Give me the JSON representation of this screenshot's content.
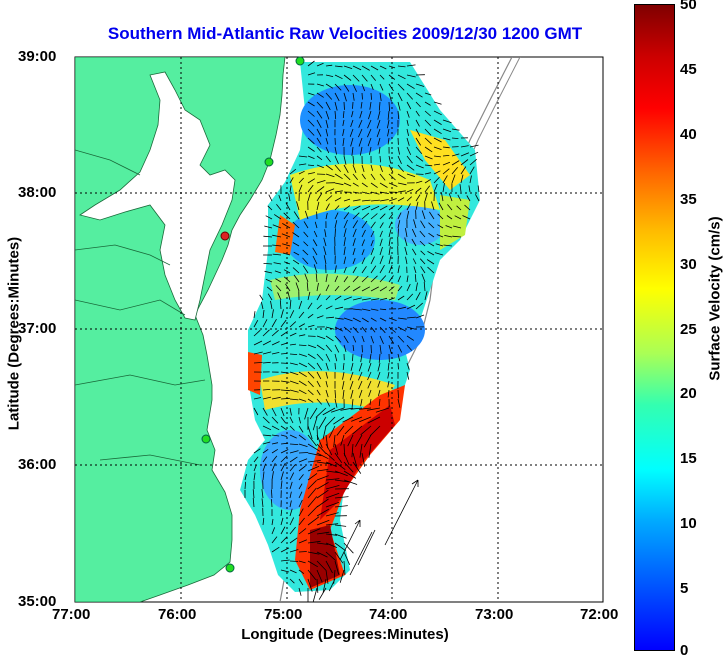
{
  "title": "Southern Mid-Atlantic Raw Velocities 2009/12/30 1200 GMT",
  "x_axis": {
    "label": "Longitude (Degrees:Minutes)",
    "ticks": [
      "77:00",
      "76:00",
      "75:00",
      "74:00",
      "73:00",
      "72:00"
    ]
  },
  "y_axis": {
    "label": "Latitude (Degrees:Minutes)",
    "ticks": [
      "39:00",
      "38:00",
      "37:00",
      "36:00",
      "35:00"
    ]
  },
  "colorbar": {
    "label": "Surface Velocity (cm/s)",
    "ticks": [
      "50",
      "45",
      "40",
      "35",
      "30",
      "25",
      "20",
      "15",
      "10",
      "5",
      "0"
    ],
    "range": [
      0,
      50
    ]
  },
  "colors": {
    "land": "#55eea0",
    "title": "#0000ee",
    "station": "#22dd22",
    "station_alert": "#dd2222"
  }
}
